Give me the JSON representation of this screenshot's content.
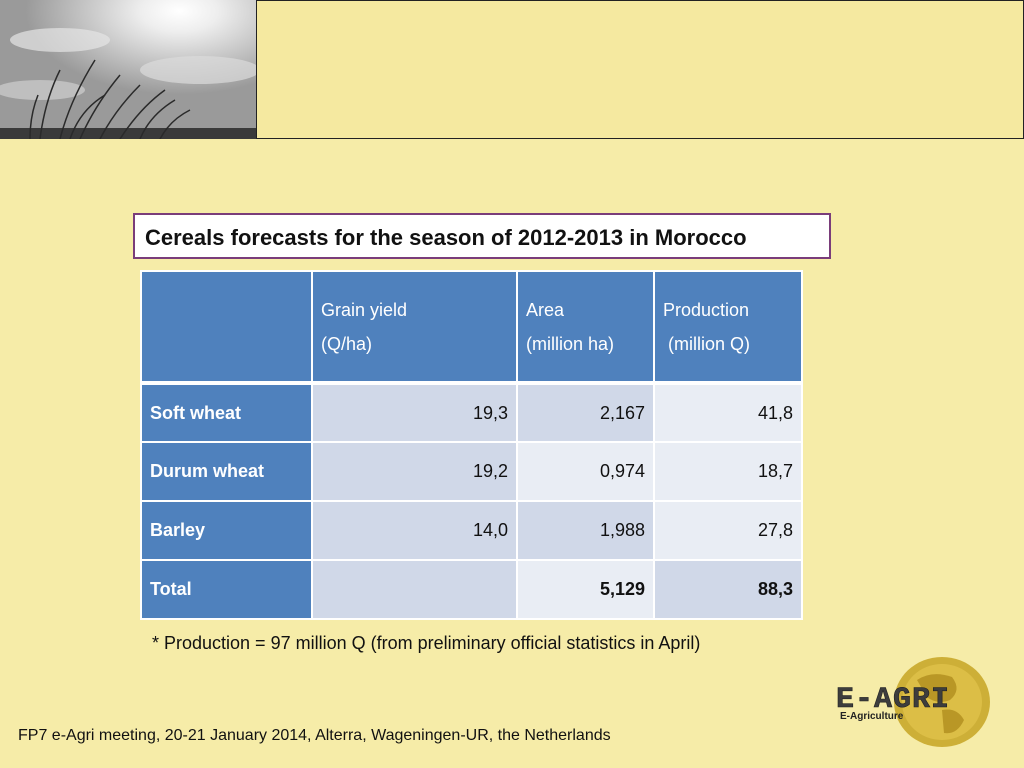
{
  "title": "Cereals forecasts for the season of 2012-2013 in Morocco",
  "table": {
    "headers": [
      {
        "line1": "",
        "line2": ""
      },
      {
        "line1": "Grain yield",
        "line2": "(Q/ha)"
      },
      {
        "line1": "Area",
        "line2": "(million ha)"
      },
      {
        "line1": "Production",
        "line2": " (million Q)"
      }
    ],
    "rows": [
      {
        "label": "Soft wheat",
        "grain_yield": "19,3",
        "area": "2,167",
        "production": "41,8"
      },
      {
        "label": "Durum wheat",
        "grain_yield": "19,2",
        "area": "0,974",
        "production": "18,7"
      },
      {
        "label": "Barley",
        "grain_yield": "14,0",
        "area": "1,988",
        "production": "27,8"
      },
      {
        "label": "Total",
        "grain_yield": "",
        "area": "5,129",
        "production": "88,3"
      }
    ]
  },
  "footnote": "* Production = 97 million Q (from preliminary official statistics in April)",
  "footer": "FP7 e-Agri meeting, 20-21 January 2014, Alterra, Wageningen-UR, the Netherlands",
  "logo": {
    "name": "E-AGRI",
    "subtitle": "E-Agriculture"
  },
  "colors": {
    "background": "#f6eca8",
    "table_header": "#4f81bd",
    "title_border": "#7a3d7a"
  }
}
